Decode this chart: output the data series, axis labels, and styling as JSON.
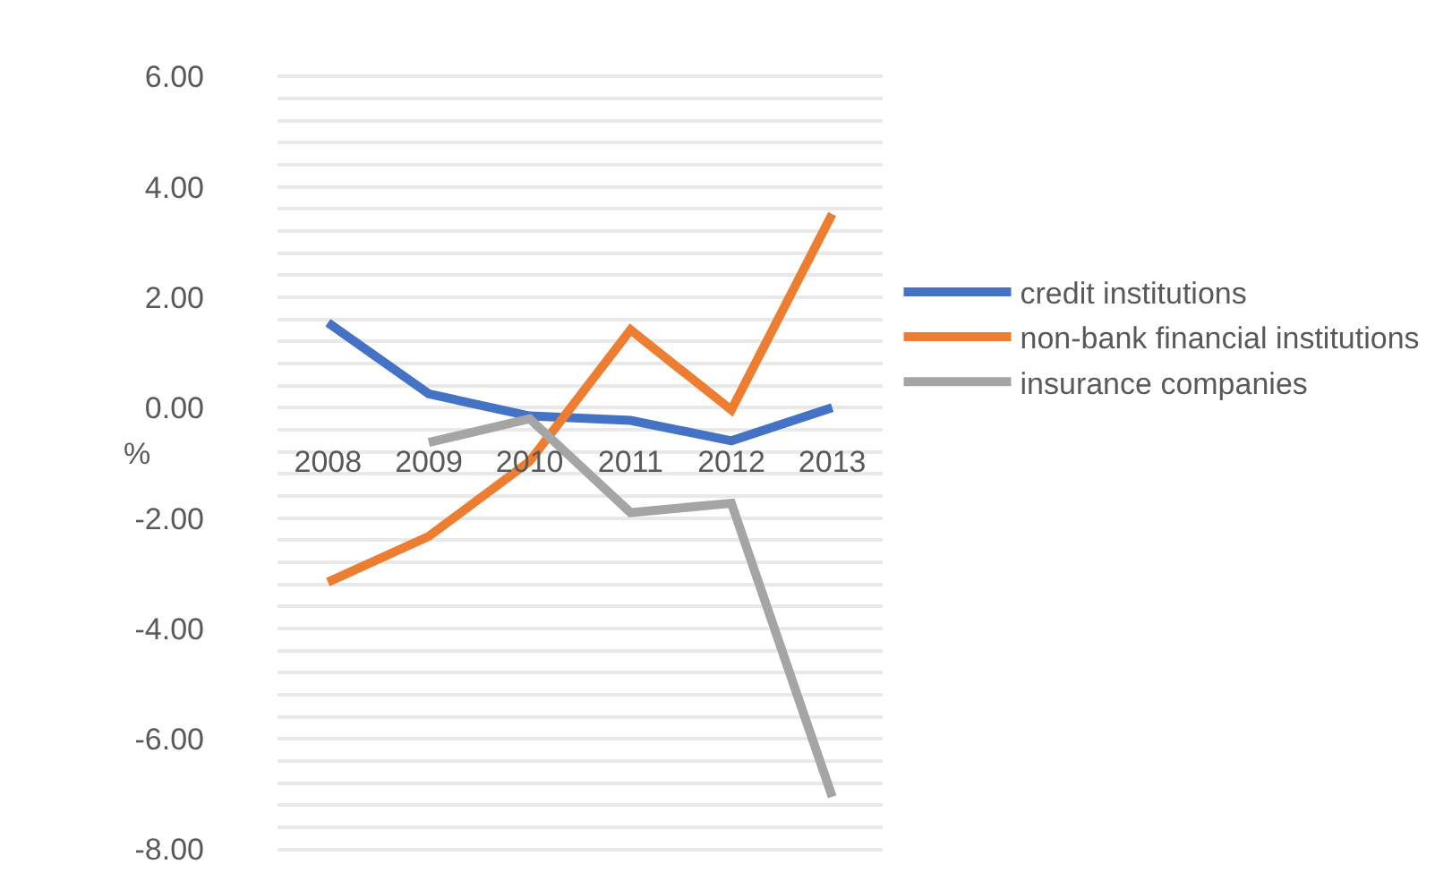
{
  "chart_data": {
    "type": "line",
    "ylabel": "%",
    "categories": [
      "2008",
      "2009",
      "2010",
      "2011",
      "2012",
      "2013"
    ],
    "series": [
      {
        "name": "credit institutions",
        "color": "#4472c4",
        "values": [
          1.54,
          0.25,
          -0.15,
          -0.23,
          -0.6,
          0.0
        ]
      },
      {
        "name": "non-bank financial institutions",
        "color": "#ed7d31",
        "values": [
          -3.16,
          -2.33,
          -0.97,
          1.41,
          -0.04,
          3.51
        ]
      },
      {
        "name": "insurance companies",
        "color": "#a5a5a5",
        "values": [
          null,
          -0.63,
          -0.2,
          -1.9,
          -1.73,
          -7.05
        ]
      }
    ],
    "ylim": [
      -8,
      6
    ],
    "yticks": [
      {
        "value": 6,
        "label": "6.00"
      },
      {
        "value": 5.6,
        "label": null
      },
      {
        "value": 5.2,
        "label": null
      },
      {
        "value": 4.8,
        "label": null
      },
      {
        "value": 4.4,
        "label": null
      },
      {
        "value": 4,
        "label": "4.00"
      },
      {
        "value": 3.6,
        "label": null
      },
      {
        "value": 3.2,
        "label": null
      },
      {
        "value": 2.8,
        "label": null
      },
      {
        "value": 2.4,
        "label": null
      },
      {
        "value": 2,
        "label": "2.00"
      },
      {
        "value": 1.6,
        "label": null
      },
      {
        "value": 1.2,
        "label": null
      },
      {
        "value": 0.8,
        "label": null
      },
      {
        "value": 0.4,
        "label": null
      },
      {
        "value": 0,
        "label": "0.00"
      },
      {
        "value": -0.4,
        "label": null
      },
      {
        "value": -0.8,
        "label": null
      },
      {
        "value": -1.2,
        "label": null
      },
      {
        "value": -1.6,
        "label": null
      },
      {
        "value": -2,
        "label": "-2.00"
      },
      {
        "value": -2.4,
        "label": null
      },
      {
        "value": -2.8,
        "label": null
      },
      {
        "value": -3.2,
        "label": null
      },
      {
        "value": -3.6,
        "label": null
      },
      {
        "value": -4,
        "label": "-4.00"
      },
      {
        "value": -4.4,
        "label": null
      },
      {
        "value": -4.8,
        "label": null
      },
      {
        "value": -5.2,
        "label": null
      },
      {
        "value": -5.6,
        "label": null
      },
      {
        "value": -6,
        "label": "-6.00"
      },
      {
        "value": -6.4,
        "label": null
      },
      {
        "value": -6.8,
        "label": null
      },
      {
        "value": -7.2,
        "label": null
      },
      {
        "value": -7.6,
        "label": null
      },
      {
        "value": -8,
        "label": "-8.00"
      }
    ],
    "grid": "y",
    "legend": "right",
    "marker": "none",
    "line_style": "solid"
  }
}
